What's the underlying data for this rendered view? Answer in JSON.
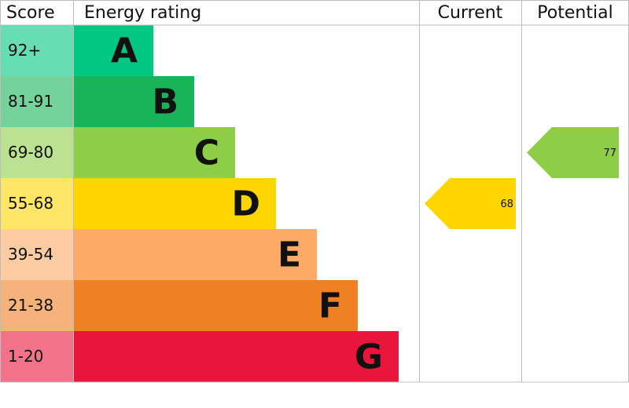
{
  "chart_data": {
    "type": "epc",
    "headers": [
      "Score",
      "Energy rating",
      "Current",
      "Potential"
    ],
    "bands": [
      {
        "score": "92+",
        "letter": "A",
        "color": "#00c781"
      },
      {
        "score": "81-91",
        "letter": "B",
        "color": "#19b459"
      },
      {
        "score": "69-80",
        "letter": "C",
        "color": "#8dce46"
      },
      {
        "score": "55-68",
        "letter": "D",
        "color": "#ffd500"
      },
      {
        "score": "39-54",
        "letter": "E",
        "color": "#fcaa65"
      },
      {
        "score": "21-38",
        "letter": "F",
        "color": "#ef8023"
      },
      {
        "score": "1-20",
        "letter": "G",
        "color": "#e9153b"
      }
    ],
    "current": 68,
    "potential": 77
  }
}
